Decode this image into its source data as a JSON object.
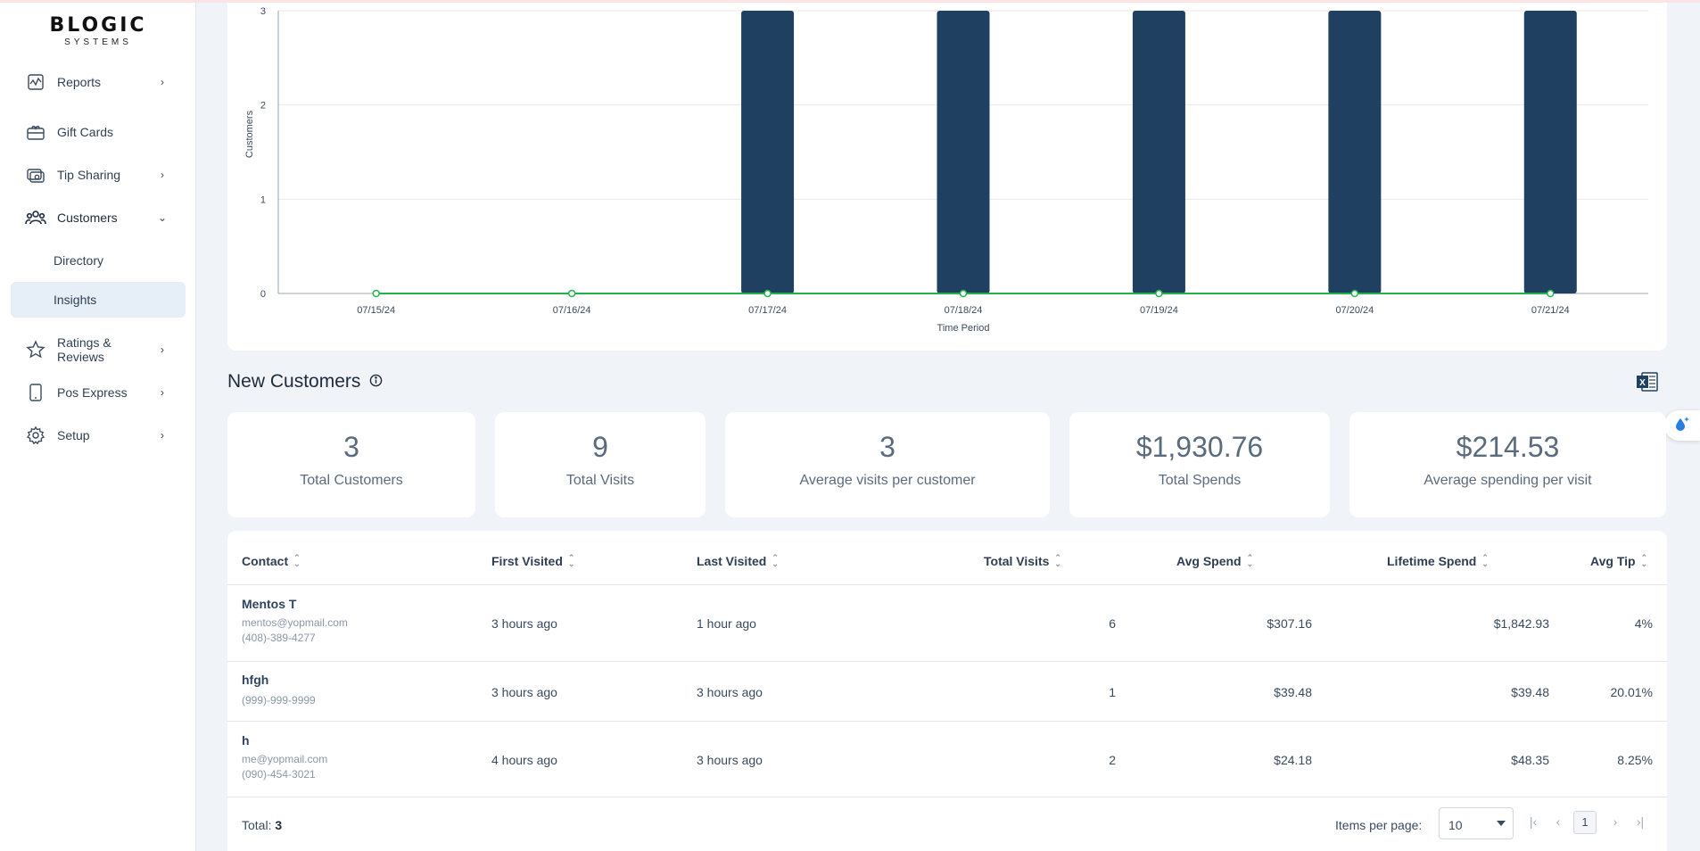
{
  "brand": {
    "name": "BLOGIC",
    "tagline": "SYSTEMS"
  },
  "sidebar": {
    "items": [
      {
        "label": "Reports",
        "icon": "chart-line-icon"
      },
      {
        "label": "Gift Cards",
        "icon": "gift-card-icon"
      },
      {
        "label": "Tip Sharing",
        "icon": "money-icon"
      },
      {
        "label": "Customers",
        "icon": "users-icon"
      },
      {
        "label": "Directory"
      },
      {
        "label": "Insights"
      },
      {
        "label": "Ratings & Reviews",
        "icon": "star-icon"
      },
      {
        "label": "Pos Express",
        "icon": "tablet-icon"
      },
      {
        "label": "Setup",
        "icon": "gear-icon"
      }
    ]
  },
  "chart_data": {
    "type": "bar",
    "categories": [
      "07/15/24",
      "07/16/24",
      "07/17/24",
      "07/18/24",
      "07/19/24",
      "07/20/24",
      "07/21/24"
    ],
    "series": [
      {
        "values": [
          0,
          0,
          3,
          3,
          3,
          3,
          3
        ],
        "color": "#1f4061"
      },
      {
        "values": [
          0,
          0,
          0,
          0,
          0,
          0,
          0
        ],
        "color": "#22b24c",
        "kind": "line"
      }
    ],
    "xlabel": "Time Period",
    "ylabel": "Customers",
    "ylim": [
      0,
      3
    ],
    "yticks": [
      "0",
      "1",
      "2",
      "3"
    ],
    "grid": true
  },
  "section": {
    "title": "New Customers"
  },
  "stats": [
    {
      "value": "3",
      "label": "Total Customers"
    },
    {
      "value": "9",
      "label": "Total Visits"
    },
    {
      "value": "3",
      "label": "Average visits per customer"
    },
    {
      "value": "$1,930.76",
      "label": "Total Spends"
    },
    {
      "value": "$214.53",
      "label": "Average spending per visit"
    }
  ],
  "table": {
    "columns": [
      "Contact",
      "First Visited",
      "Last Visited",
      "Total Visits",
      "Avg Spend",
      "Lifetime Spend",
      "Avg Tip"
    ],
    "rows": [
      {
        "name": "Mentos T",
        "email": "mentos@yopmail.com",
        "phone": "(408)-389-4277",
        "first": "3 hours ago",
        "last": "1 hour ago",
        "visits": "6",
        "avg": "$307.16",
        "lifetime": "$1,842.93",
        "tip": "4%"
      },
      {
        "name": "hfgh",
        "email": "",
        "phone": "(999)-999-9999",
        "first": "3 hours ago",
        "last": "3 hours ago",
        "visits": "1",
        "avg": "$39.48",
        "lifetime": "$39.48",
        "tip": "20.01%"
      },
      {
        "name": "h",
        "email": "me@yopmail.com",
        "phone": "(090)-454-3021",
        "first": "4 hours ago",
        "last": "3 hours ago",
        "visits": "2",
        "avg": "$24.18",
        "lifetime": "$48.35",
        "tip": "8.25%"
      }
    ],
    "footer": {
      "total_label": "Total:",
      "total_value": "3",
      "items_per_page_label": "Items per page:",
      "items_per_page": "10",
      "page": "1"
    }
  }
}
